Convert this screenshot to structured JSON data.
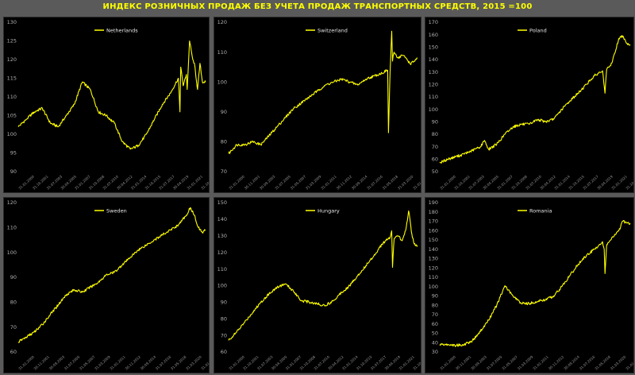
{
  "title": "ИНДЕКС РОЗНИЧНЫХ ПРОДАЖ БЕЗ УЧЕТА ПРОДАЖ ТРАНСПОРТНЫХ СРЕДСТВ, 2015 =100",
  "colors": {
    "line": "#ffff00",
    "background": "#000000",
    "frame": "#5a5a5a"
  },
  "chart_data": [
    {
      "type": "line",
      "title": "",
      "xlabel": "",
      "ylabel": "",
      "legend": "top-center",
      "series": [
        {
          "name": "Netherlands",
          "x_years": [
            2000,
            2001,
            2002,
            2003,
            2004,
            2005,
            2006,
            2007,
            2008,
            2009,
            2010,
            2011,
            2012,
            2013,
            2014,
            2015,
            2016,
            2017,
            2018,
            2019,
            2020,
            2020.2,
            2020.3,
            2020.6,
            2021,
            2021.1,
            2021.4,
            2021.8,
            2022,
            2022.4,
            2022.7,
            2023,
            2023.4
          ],
          "values": [
            102,
            104,
            106,
            107,
            103,
            102,
            105,
            108,
            114,
            112,
            106,
            105,
            103,
            98,
            96,
            97,
            100,
            104,
            108,
            111,
            115,
            106,
            118,
            113,
            116,
            112,
            125,
            120,
            119,
            112,
            119,
            114,
            114
          ]
        }
      ],
      "ylim": [
        90,
        130
      ],
      "yticks": [
        90,
        95,
        100,
        105,
        110,
        115,
        120,
        125,
        130
      ],
      "xticks": [
        "31.01.2000",
        "31.10.2001",
        "31.07.2003",
        "30.04.2005",
        "31.01.2007",
        "31.10.2008",
        "31.07.2010",
        "30.04.2012",
        "31.01.2014",
        "31.10.2015",
        "31.07.2017",
        "30.04.2019",
        "31.01.2021",
        "31.10.2022"
      ]
    },
    {
      "type": "line",
      "title": "",
      "xlabel": "",
      "ylabel": "",
      "legend": "top-center",
      "series": [
        {
          "name": "Switzerland",
          "x_years": [
            2000,
            2001,
            2002,
            2003,
            2004,
            2005,
            2006,
            2007,
            2008,
            2009,
            2010,
            2011,
            2012,
            2013,
            2014,
            2015,
            2016,
            2017,
            2018,
            2019,
            2019.7,
            2019.8,
            2020,
            2020.2,
            2020.3,
            2020.5,
            2021,
            2021.5,
            2022,
            2022.5,
            2023,
            2023.4
          ],
          "values": [
            76,
            79,
            79,
            80,
            79,
            82,
            85,
            88,
            91,
            93,
            95,
            97,
            99,
            100,
            101,
            100,
            99,
            101,
            102,
            103,
            104,
            83,
            103,
            117,
            107,
            110,
            108,
            109,
            108,
            106,
            107,
            108
          ]
        }
      ],
      "ylim": [
        70,
        120
      ],
      "yticks": [
        70,
        80,
        90,
        100,
        110,
        120
      ],
      "xticks": [
        "31.01.2000",
        "30.11.2001",
        "30.09.2003",
        "31.07.2005",
        "31.05.2007",
        "31.03.2009",
        "31.01.2011",
        "30.11.2012",
        "30.09.2014",
        "31.07.2016",
        "31.05.2018",
        "31.03.2020",
        "31.01.2022"
      ]
    },
    {
      "type": "line",
      "title": "",
      "xlabel": "",
      "ylabel": "",
      "legend": "top-center",
      "series": [
        {
          "name": "Poland",
          "x_years": [
            2000,
            2001,
            2002,
            2003,
            2004,
            2005,
            2005.5,
            2006,
            2007,
            2008,
            2009,
            2010,
            2011,
            2012,
            2013,
            2014,
            2015,
            2016,
            2017,
            2018,
            2019,
            2020,
            2020.3,
            2020.5,
            2021,
            2021.5,
            2022,
            2022.5,
            2023,
            2023.4
          ],
          "values": [
            57,
            60,
            62,
            64,
            67,
            70,
            75,
            68,
            72,
            80,
            86,
            88,
            88,
            92,
            90,
            92,
            100,
            107,
            113,
            120,
            127,
            131,
            113,
            132,
            135,
            145,
            157,
            159,
            153,
            152
          ]
        }
      ],
      "ylim": [
        50,
        170
      ],
      "yticks": [
        50,
        60,
        70,
        80,
        90,
        100,
        110,
        120,
        130,
        140,
        150,
        160,
        170
      ],
      "xticks": [
        "31.01.2000",
        "31.10.2001",
        "31.07.2003",
        "30.04.2005",
        "31.01.2007",
        "31.10.2008",
        "31.07.2010",
        "30.04.2012",
        "31.01.2014",
        "31.10.2015",
        "31.07.2017",
        "30.04.2019",
        "31.01.2021",
        "31.10.2022"
      ]
    },
    {
      "type": "line",
      "title": "",
      "xlabel": "",
      "ylabel": "",
      "legend": "top-center",
      "series": [
        {
          "name": "Sweden",
          "x_years": [
            2000,
            2001,
            2002,
            2003,
            2004,
            2005,
            2006,
            2007,
            2008,
            2009,
            2010,
            2011,
            2012,
            2013,
            2014,
            2015,
            2016,
            2017,
            2018,
            2019,
            2020,
            2021,
            2021.5,
            2022,
            2022.5,
            2023,
            2023.4
          ],
          "values": [
            64,
            66,
            68,
            71,
            75,
            79,
            83,
            85,
            84,
            86,
            88,
            91,
            92,
            95,
            98,
            101,
            103,
            105,
            107,
            109,
            111,
            115,
            118,
            115,
            110,
            108,
            109
          ]
        }
      ],
      "ylim": [
        60,
        120
      ],
      "yticks": [
        60,
        70,
        80,
        90,
        100,
        110,
        120
      ],
      "xticks": [
        "31.01.2000",
        "30.11.2001",
        "30.09.2003",
        "31.07.2005",
        "31.05.2007",
        "31.03.2009",
        "31.01.2011",
        "30.11.2012",
        "30.09.2014",
        "31.07.2016",
        "31.05.2018",
        "31.03.2020",
        "31.01.2022"
      ]
    },
    {
      "type": "line",
      "title": "",
      "xlabel": "",
      "ylabel": "",
      "legend": "top-center",
      "series": [
        {
          "name": "Hungary",
          "x_years": [
            2000,
            2001,
            2002,
            2003,
            2004,
            2005,
            2006,
            2007,
            2008,
            2009,
            2010,
            2011,
            2012,
            2013,
            2014,
            2015,
            2016,
            2017,
            2018,
            2019,
            2020,
            2020.2,
            2020.3,
            2020.5,
            2021,
            2021.5,
            2022,
            2022.3,
            2022.7,
            2023,
            2023.4
          ],
          "values": [
            67,
            72,
            78,
            84,
            90,
            95,
            99,
            101,
            97,
            91,
            90,
            89,
            88,
            91,
            96,
            100,
            106,
            112,
            118,
            125,
            129,
            133,
            111,
            128,
            130,
            127,
            135,
            145,
            131,
            125,
            124
          ]
        }
      ],
      "ylim": [
        60,
        150
      ],
      "yticks": [
        60,
        70,
        80,
        90,
        100,
        110,
        120,
        130,
        140,
        150
      ],
      "xticks": [
        "31.01.2000",
        "31.10.2001",
        "31.07.2003",
        "30.04.2005",
        "31.01.2007",
        "31.10.2008",
        "31.07.2010",
        "30.04.2012",
        "31.01.2014",
        "31.10.2015",
        "31.07.2017",
        "30.04.2019",
        "31.01.2021",
        "31.10.2022"
      ]
    },
    {
      "type": "line",
      "title": "",
      "xlabel": "",
      "ylabel": "",
      "legend": "top-center",
      "series": [
        {
          "name": "Romania",
          "x_years": [
            2000,
            2001,
            2002,
            2003,
            2004,
            2005,
            2006,
            2007,
            2008,
            2009,
            2010,
            2011,
            2012,
            2013,
            2014,
            2015,
            2016,
            2017,
            2018,
            2019,
            2020,
            2020.2,
            2020.3,
            2020.5,
            2021,
            2022,
            2022.5,
            2023,
            2023.4
          ],
          "values": [
            38,
            38,
            37,
            38,
            42,
            52,
            64,
            80,
            101,
            90,
            82,
            82,
            84,
            86,
            90,
            100,
            112,
            124,
            133,
            140,
            148,
            140,
            114,
            145,
            150,
            160,
            170,
            168,
            168
          ]
        }
      ],
      "ylim": [
        30,
        190
      ],
      "yticks": [
        30,
        40,
        50,
        60,
        70,
        80,
        90,
        100,
        110,
        120,
        130,
        140,
        150,
        160,
        170,
        180,
        190
      ],
      "xticks": [
        "31.01.2000",
        "30.11.2001",
        "30.09.2003",
        "31.07.2005",
        "31.05.2007",
        "31.03.2009",
        "31.01.2011",
        "30.11.2012",
        "30.09.2014",
        "31.07.2016",
        "31.05.2018",
        "31.03.2020",
        "31.01.2022"
      ]
    }
  ]
}
